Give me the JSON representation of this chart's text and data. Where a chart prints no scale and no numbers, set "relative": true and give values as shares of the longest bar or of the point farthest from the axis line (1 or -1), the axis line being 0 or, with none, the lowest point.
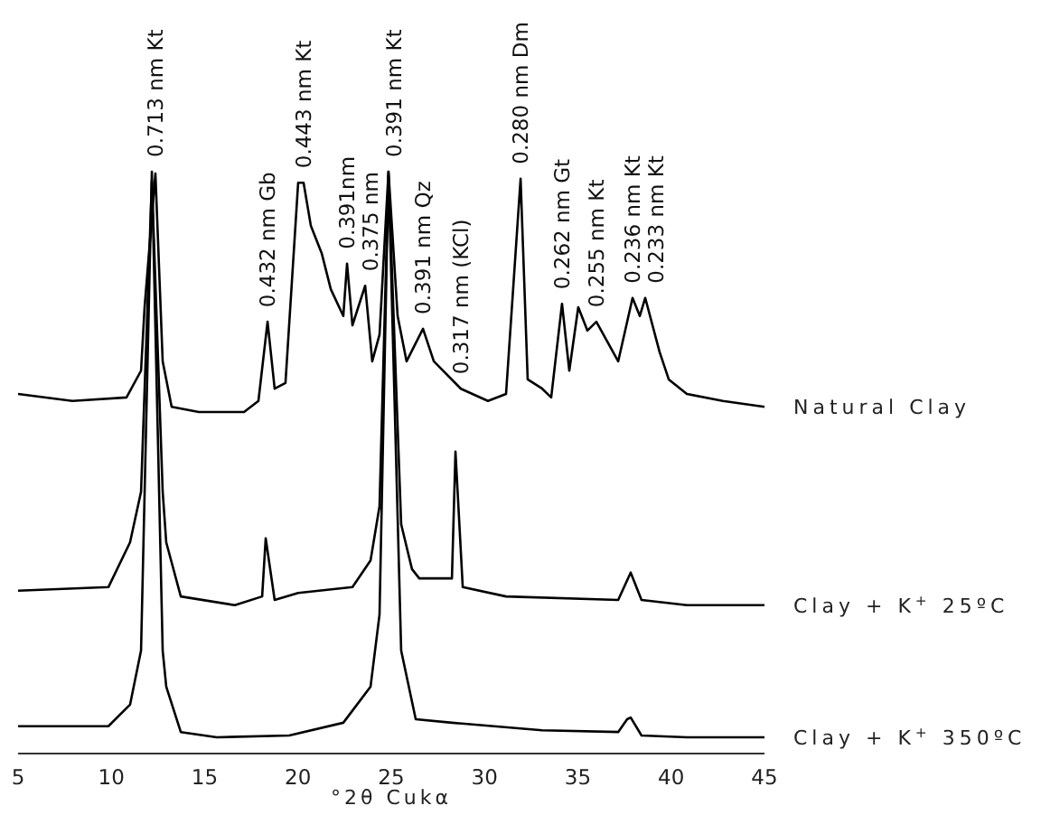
{
  "chart_data": {
    "type": "line",
    "relative": true,
    "xlabel": "°2θ Cukα",
    "xlim": [
      5,
      45
    ],
    "xticks": [
      5,
      10,
      15,
      20,
      25,
      30,
      35,
      40,
      45
    ],
    "grid": false,
    "legend": false,
    "marker": "none",
    "line_style": "solid",
    "series": [
      {
        "name": "Natural Clay",
        "color": "#000000",
        "x": [
          5,
          7.91,
          10.81,
          11.59,
          11.78,
          12.36,
          12.75,
          13.23,
          14.69,
          17.11,
          17.88,
          18.37,
          18.75,
          19.33,
          20.01,
          20.3,
          20.69,
          21.27,
          21.76,
          22.43,
          22.63,
          22.92,
          23.6,
          23.98,
          24.37,
          24.85,
          25.34,
          25.82,
          26.7,
          27.28,
          28.73,
          30.18,
          31.15,
          31.93,
          32.31,
          33.09,
          33.57,
          34.15,
          34.54,
          35.02,
          35.51,
          35.99,
          37.16,
          37.93,
          38.32,
          38.61,
          39.38,
          39.87,
          40.84,
          42.77,
          45
        ],
        "values": [
          0.618,
          0.606,
          0.612,
          0.658,
          0.767,
          0.997,
          0.674,
          0.596,
          0.587,
          0.587,
          0.606,
          0.742,
          0.627,
          0.637,
          0.981,
          0.981,
          0.907,
          0.86,
          0.798,
          0.752,
          0.842,
          0.736,
          0.804,
          0.674,
          0.72,
          1.0,
          0.752,
          0.674,
          0.73,
          0.674,
          0.627,
          0.606,
          0.618,
          0.988,
          0.643,
          0.627,
          0.612,
          0.773,
          0.658,
          0.767,
          0.727,
          0.742,
          0.674,
          0.783,
          0.752,
          0.783,
          0.69,
          0.643,
          0.618,
          0.606,
          0.596
        ]
      },
      {
        "name": "Clay + K$^{+}$ 25ºC",
        "color": "#000000",
        "x": [
          5,
          9.84,
          11.0,
          11.59,
          12.17,
          12.75,
          12.94,
          13.72,
          16.62,
          18.08,
          18.27,
          18.75,
          20.01,
          22.92,
          23.89,
          24.37,
          24.85,
          25.53,
          26.11,
          26.5,
          28.25,
          28.44,
          28.83,
          31.15,
          37.16,
          37.83,
          38.41,
          40.84,
          45
        ],
        "values": [
          0.28,
          0.286,
          0.363,
          0.45,
          0.984,
          0.45,
          0.363,
          0.27,
          0.255,
          0.27,
          0.37,
          0.264,
          0.276,
          0.286,
          0.332,
          0.425,
          0.994,
          0.394,
          0.317,
          0.301,
          0.301,
          0.519,
          0.286,
          0.27,
          0.264,
          0.311,
          0.264,
          0.255,
          0.255
        ]
      },
      {
        "name": "Clay + K$^{+}$ 350ºC",
        "color": "#000000",
        "x": [
          5,
          9.84,
          11.0,
          11.59,
          12.17,
          12.75,
          12.94,
          13.72,
          15.65,
          19.53,
          22.43,
          23.89,
          24.37,
          24.85,
          25.53,
          26.31,
          28.25,
          33.09,
          37.16,
          37.64,
          37.83,
          38.41,
          40.84,
          45
        ],
        "values": [
          0.047,
          0.047,
          0.084,
          0.177,
          1.0,
          0.177,
          0.115,
          0.037,
          0.028,
          0.031,
          0.053,
          0.115,
          0.239,
          1.0,
          0.177,
          0.059,
          0.053,
          0.04,
          0.037,
          0.059,
          0.062,
          0.031,
          0.028,
          0.028
        ]
      }
    ],
    "annotations": [
      {
        "text": "0.713 nm Kt",
        "x": 12.36,
        "y": 0.997
      },
      {
        "text": "0.432 nm Gb",
        "x": 18.37,
        "y": 0.742
      },
      {
        "text": "0.443 nm Kt",
        "x": 20.3,
        "y": 0.981
      },
      {
        "text": "0.391nm",
        "x": 22.63,
        "y": 0.842
      },
      {
        "text": "0.375 nm",
        "x": 23.6,
        "y": 0.804
      },
      {
        "text": "0.391 nm Kt",
        "x": 24.85,
        "y": 1.0
      },
      {
        "text": "0.391 nm Qz",
        "x": 26.7,
        "y": 0.73
      },
      {
        "text": "0.317 nm (KCl)",
        "x": 28.73,
        "y": 0.627
      },
      {
        "text": "0.280 nm Dm",
        "x": 31.93,
        "y": 0.988
      },
      {
        "text": "0.262 nm Gt",
        "x": 34.15,
        "y": 0.773
      },
      {
        "text": "0.255 nm Kt",
        "x": 35.99,
        "y": 0.742
      },
      {
        "text": "0.236 nm Kt",
        "x": 37.93,
        "y": 0.783
      },
      {
        "text": "0.233 nm Kt",
        "x": 38.61,
        "y": 0.783
      }
    ]
  }
}
